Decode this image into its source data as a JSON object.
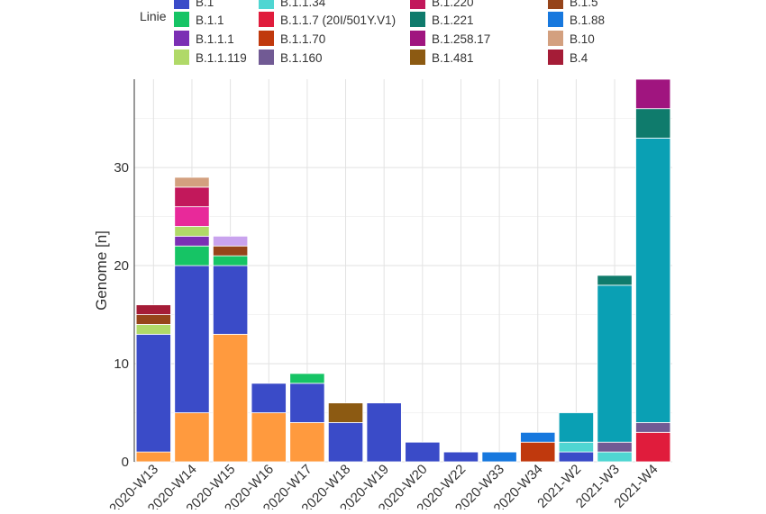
{
  "chart_data": {
    "type": "bar",
    "stacked": true,
    "title": "",
    "xlabel": "",
    "ylabel": "Genome [n]",
    "ylim": [
      0,
      39
    ],
    "yticks": [
      0,
      10,
      20,
      30
    ],
    "grid": true,
    "legend_title": "Linie",
    "legend_position": "top",
    "categories": [
      "2020-W13",
      "2020-W14",
      "2020-W15",
      "2020-W16",
      "2020-W17",
      "2020-W18",
      "2020-W19",
      "2020-W20",
      "2020-W22",
      "2020-W33",
      "2020-W34",
      "2021-W2",
      "2021-W3",
      "2021-W4"
    ],
    "legend": [
      {
        "name": "B.1",
        "color": "#3a4bc8"
      },
      {
        "name": "B.1.1",
        "color": "#16c465"
      },
      {
        "name": "B.1.1.1",
        "color": "#7b2fb4"
      },
      {
        "name": "B.1.1.119",
        "color": "#b0d968"
      },
      {
        "name": "B.1.1.34",
        "color": "#4fd6d2"
      },
      {
        "name": "B.1.1.7 (20I/501Y.V1)",
        "color": "#e01c3c"
      },
      {
        "name": "B.1.1.70",
        "color": "#c0390d"
      },
      {
        "name": "B.1.160",
        "color": "#715a94"
      },
      {
        "name": "B.1.220",
        "color": "#c2185b"
      },
      {
        "name": "B.1.221",
        "color": "#0f7b6c"
      },
      {
        "name": "B.1.258.17",
        "color": "#a0157f"
      },
      {
        "name": "B.1.481",
        "color": "#8c5a12"
      },
      {
        "name": "B.1.5",
        "color": "#96441a"
      },
      {
        "name": "B.1.88",
        "color": "#1778de"
      },
      {
        "name": "B.10",
        "color": "#d3a07f"
      },
      {
        "name": "B.4",
        "color": "#a51c37"
      }
    ],
    "series": [
      {
        "color": "#ff9a3e",
        "values": [
          1,
          5,
          13,
          5,
          4,
          0,
          0,
          0,
          0,
          0,
          0,
          0,
          0,
          0
        ]
      },
      {
        "name": "B.1.1.7 (20I/501Y.V1)",
        "color": "#e01c3c",
        "values": [
          0,
          0,
          0,
          0,
          0,
          0,
          0,
          0,
          0,
          0,
          0,
          0,
          0,
          3
        ]
      },
      {
        "name": "B.1",
        "color": "#3a4bc8",
        "values": [
          12,
          15,
          7,
          3,
          4,
          4,
          6,
          2,
          1,
          0,
          0,
          1,
          0,
          0
        ]
      },
      {
        "name": "B.1.160",
        "color": "#715a94",
        "values": [
          0,
          0,
          0,
          0,
          0,
          0,
          0,
          0,
          0,
          0,
          0,
          0,
          0,
          1
        ]
      },
      {
        "name": "B.1.1.34",
        "color": "#4fd6d2",
        "values": [
          0,
          0,
          0,
          0,
          0,
          0,
          0,
          0,
          0,
          0,
          0,
          1,
          1,
          0
        ]
      },
      {
        "name": "B.1.160",
        "color": "#715a94",
        "values": [
          0,
          0,
          0,
          0,
          0,
          0,
          0,
          0,
          0,
          0,
          0,
          0,
          1,
          0
        ]
      },
      {
        "color": "#0aa0b4",
        "values": [
          0,
          0,
          0,
          0,
          0,
          0,
          0,
          0,
          0,
          0,
          0,
          3,
          16,
          29
        ]
      },
      {
        "name": "B.1.1",
        "color": "#16c465",
        "values": [
          0,
          2,
          1,
          0,
          1,
          0,
          0,
          0,
          0,
          0,
          0,
          0,
          0,
          0
        ]
      },
      {
        "name": "B.1.1.70",
        "color": "#c0390d",
        "values": [
          0,
          0,
          0,
          0,
          0,
          0,
          0,
          0,
          0,
          0,
          2,
          0,
          0,
          0
        ]
      },
      {
        "name": "B.1.88",
        "color": "#1778de",
        "values": [
          0,
          0,
          0,
          0,
          0,
          0,
          0,
          0,
          0,
          1,
          1,
          0,
          0,
          0
        ]
      },
      {
        "name": "B.1.1.1",
        "color": "#7b2fb4",
        "values": [
          0,
          1,
          0,
          0,
          0,
          0,
          0,
          0,
          0,
          0,
          0,
          0,
          0,
          0
        ]
      },
      {
        "name": "B.1.1.119",
        "color": "#b0d968",
        "values": [
          1,
          1,
          0,
          0,
          0,
          0,
          0,
          0,
          0,
          0,
          0,
          0,
          0,
          0
        ]
      },
      {
        "name": "B.1.481",
        "color": "#8c5a12",
        "values": [
          0,
          0,
          0,
          0,
          0,
          2,
          0,
          0,
          0,
          0,
          0,
          0,
          0,
          0
        ]
      },
      {
        "name": "B.1.5",
        "color": "#96441a",
        "values": [
          1,
          0,
          1,
          0,
          0,
          0,
          0,
          0,
          0,
          0,
          0,
          0,
          0,
          0
        ]
      },
      {
        "color": "#e8299a",
        "values": [
          0,
          2,
          0,
          0,
          0,
          0,
          0,
          0,
          0,
          0,
          0,
          0,
          0,
          0
        ]
      },
      {
        "color": "#c9a3ee",
        "values": [
          0,
          0,
          1,
          0,
          0,
          0,
          0,
          0,
          0,
          0,
          0,
          0,
          0,
          0
        ]
      },
      {
        "name": "B.1.220",
        "color": "#c2185b",
        "values": [
          0,
          2,
          0,
          0,
          0,
          0,
          0,
          0,
          0,
          0,
          0,
          0,
          0,
          0
        ]
      },
      {
        "name": "B.1.221",
        "color": "#0f7b6c",
        "values": [
          0,
          0,
          0,
          0,
          0,
          0,
          0,
          0,
          0,
          0,
          0,
          0,
          1,
          3
        ]
      },
      {
        "name": "B.1.258.17",
        "color": "#a0157f",
        "values": [
          0,
          0,
          0,
          0,
          0,
          0,
          0,
          0,
          0,
          0,
          0,
          0,
          0,
          3
        ]
      },
      {
        "name": "B.4",
        "color": "#a51c37",
        "values": [
          1,
          0,
          0,
          0,
          0,
          0,
          0,
          0,
          0,
          0,
          0,
          0,
          0,
          0
        ]
      },
      {
        "name": "B.10",
        "color": "#d3a07f",
        "values": [
          0,
          1,
          0,
          0,
          0,
          0,
          0,
          0,
          0,
          0,
          0,
          0,
          0,
          0
        ]
      }
    ]
  }
}
